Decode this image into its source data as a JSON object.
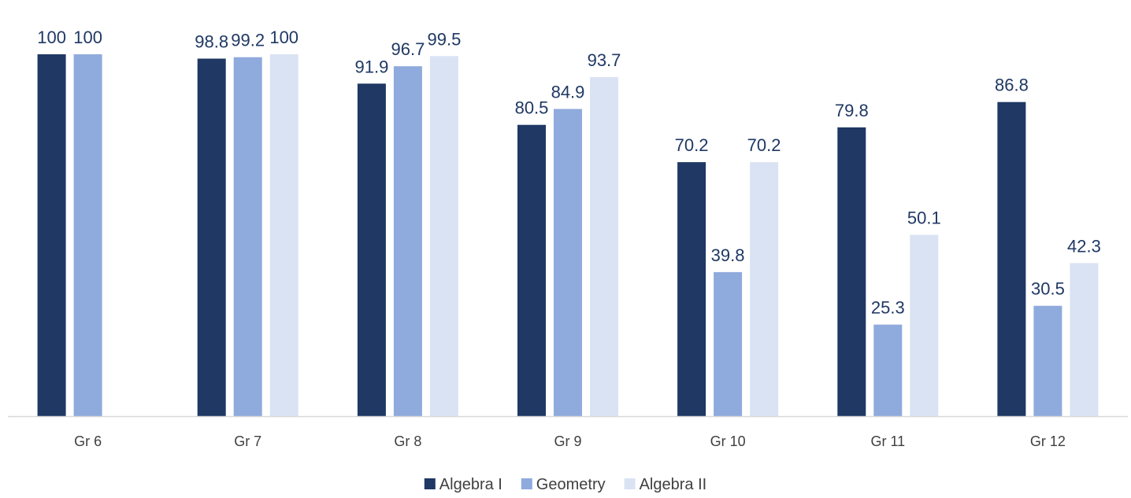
{
  "chart_data": {
    "type": "bar",
    "categories": [
      "Gr 6",
      "Gr 7",
      "Gr 8",
      "Gr 9",
      "Gr 10",
      "Gr 11",
      "Gr 12"
    ],
    "series": [
      {
        "name": "Algebra I",
        "color": "#1f3864",
        "values": [
          100,
          98.8,
          91.9,
          80.5,
          70.2,
          79.8,
          86.8
        ],
        "labels": [
          "100",
          "98.8",
          "91.9",
          "80.5",
          "70.2",
          "79.8",
          "86.8"
        ]
      },
      {
        "name": "Geometry",
        "color": "#8faadc",
        "values": [
          100,
          99.2,
          96.7,
          84.9,
          39.8,
          25.3,
          30.5
        ],
        "labels": [
          "100",
          "99.2",
          "96.7",
          "84.9",
          "39.8",
          "25.3",
          "30.5"
        ]
      },
      {
        "name": "Algebra II",
        "color": "#dae3f3",
        "values": [
          null,
          100,
          99.5,
          93.7,
          70.2,
          50.1,
          42.3
        ],
        "labels": [
          null,
          "100",
          "99.5",
          "93.7",
          "70.2",
          "50.1",
          "42.3"
        ]
      }
    ],
    "ylim": [
      0,
      100
    ],
    "grid": false,
    "legend": "bottom",
    "axis_color": "#d9d9d9"
  }
}
